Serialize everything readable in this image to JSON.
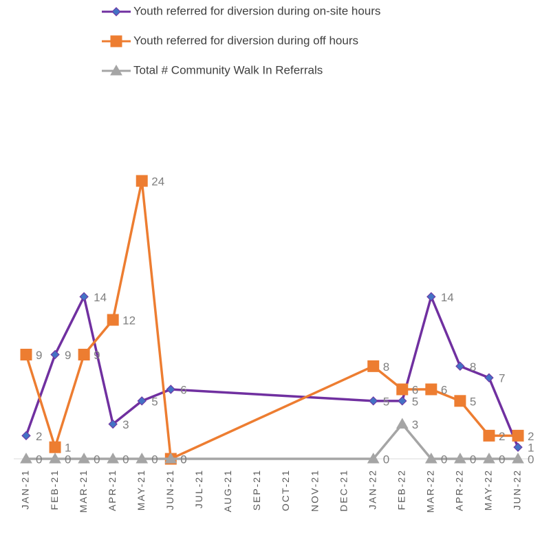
{
  "chart_data": {
    "type": "line",
    "categories": [
      "JAN-21",
      "FEB-21",
      "MAR-21",
      "APR-21",
      "MAY-21",
      "JUN-21",
      "JUL-21",
      "AUG-21",
      "SEP-21",
      "OCT-21",
      "NOV-21",
      "DEC-21",
      "JAN-22",
      "FEB-22",
      "MAR-22",
      "APR-22",
      "MAY-22",
      "JUN-22"
    ],
    "series": [
      {
        "name": "Youth referred for diversion during on-site hours",
        "color": "#7030a0",
        "marker": "diamond",
        "marker_color": "#4472c4",
        "values": [
          2,
          9,
          14,
          3,
          5,
          6,
          null,
          null,
          null,
          null,
          null,
          null,
          5,
          5,
          14,
          8,
          7,
          1
        ]
      },
      {
        "name": "Youth referred for diversion during off hours",
        "color": "#ed7d31",
        "marker": "square",
        "marker_color": "#ed7d31",
        "values": [
          9,
          1,
          9,
          12,
          24,
          0,
          null,
          null,
          null,
          null,
          null,
          null,
          8,
          6,
          6,
          5,
          2,
          2
        ]
      },
      {
        "name": "Total # Community Walk In Referrals",
        "color": "#a5a5a5",
        "marker": "triangle",
        "marker_color": "#a5a5a5",
        "values": [
          0,
          0,
          0,
          0,
          0,
          0,
          null,
          null,
          null,
          null,
          null,
          null,
          0,
          3,
          0,
          0,
          0,
          0
        ]
      }
    ],
    "ylim": [
      0,
      24
    ],
    "span_gaps": true,
    "data_labels": true,
    "legend": "top",
    "grid": false
  }
}
